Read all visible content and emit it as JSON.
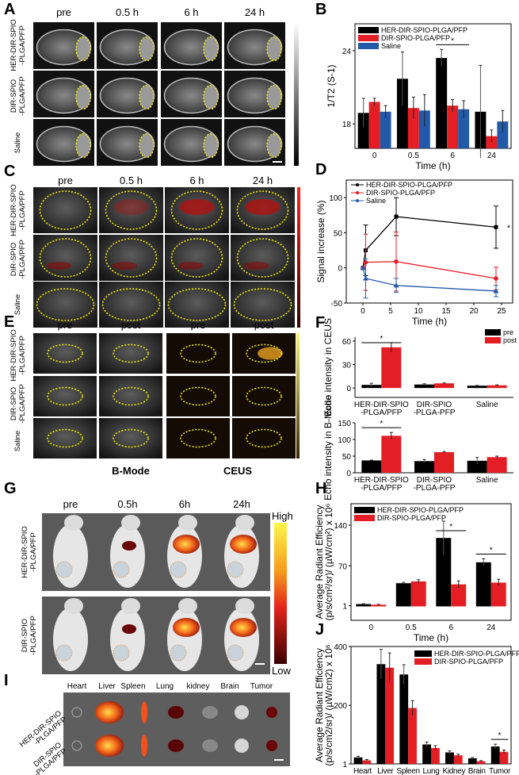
{
  "panel_letters": {
    "A": "A",
    "B": "B",
    "C": "C",
    "D": "D",
    "E": "E",
    "F": "F",
    "G": "G",
    "H": "H",
    "I": "I",
    "J": "J"
  },
  "panelA": {
    "col_headers": [
      "pre",
      "0.5 h",
      "6 h",
      "24 h"
    ],
    "row_labels": [
      [
        "HER-DIR-SPIO",
        "-PLGA/PFP"
      ],
      [
        "DIR-SPIO",
        "-PLGA/PFP"
      ],
      [
        "Saline",
        ""
      ]
    ]
  },
  "panelC": {
    "col_headers": [
      "pre",
      "0.5 h",
      "6 h",
      "24 h"
    ],
    "row_labels": [
      [
        "HER-DIR-SPIO",
        "-PLGA/PFP"
      ],
      [
        "DIR-SPIO",
        "-PLGA/PFP"
      ],
      [
        "Saline",
        ""
      ]
    ]
  },
  "panelE": {
    "col_headers": [
      "pre",
      "post",
      "pre",
      "post"
    ],
    "row_labels": [
      [
        "HER-DIR-SPIO",
        "-PLGA/PFP"
      ],
      [
        "DIR-SPIO",
        "-PLGA/PFP"
      ],
      [
        "Saline",
        ""
      ]
    ],
    "footers": [
      "B-Mode",
      "CEUS"
    ]
  },
  "panelG": {
    "col_headers": [
      "pre",
      "0.5h",
      "6h",
      "24h"
    ],
    "row_labels": [
      [
        "HER-DIR-SPIO",
        "-PLGA/PFP"
      ],
      [
        "DIR-SPIO",
        "-PLGA/PFP"
      ]
    ],
    "colorbar": {
      "high": "High",
      "low": "Low"
    }
  },
  "panelI": {
    "col_headers": [
      "Heart",
      "Liver",
      "Spleen",
      "Lung",
      "kidney",
      "Brain",
      "Tumor"
    ],
    "row_labels": [
      [
        "HER-DIR-SPIO",
        "-PLGA/PFP"
      ],
      [
        "DIR-SPIO",
        "-PLGA/PFP"
      ]
    ]
  },
  "colors": {
    "black": "#000000",
    "red": "#e41e25",
    "blue": "#2359a8",
    "ellipse": "#f2e600"
  },
  "chart_data": [
    {
      "id": "B",
      "type": "bar",
      "xlabel": "Time (h)",
      "ylabel": "1/T2 (S-1)",
      "categories": [
        "0",
        "0.5",
        "6",
        "24"
      ],
      "ylim": [
        16,
        26.2
      ],
      "yticks": [
        18,
        24
      ],
      "legend": "top-left",
      "series": [
        {
          "name": "HER-DIR-SPIO-PLGA/PFP",
          "color": "#000000",
          "values": [
            18.9,
            21.7,
            23.4,
            19.0
          ],
          "errors": [
            1.2,
            2.2,
            0.7,
            3.8
          ]
        },
        {
          "name": "DIR-SPIO-PLGA/PFP",
          "color": "#e41e25",
          "values": [
            19.8,
            19.3,
            19.5,
            17.0
          ],
          "errors": [
            0.3,
            0.9,
            0.5,
            0.5
          ]
        },
        {
          "name": "Saline",
          "color": "#2359a8",
          "values": [
            19.0,
            19.1,
            19.2,
            18.2
          ],
          "errors": [
            0.5,
            1.3,
            0.7,
            0.9
          ]
        }
      ],
      "significance": [
        {
          "category": "6",
          "label": "*"
        }
      ]
    },
    {
      "id": "D",
      "type": "line",
      "xlabel": "Time (h)",
      "ylabel": "Signal increase (%)",
      "xlim": [
        -3,
        27
      ],
      "ylim": [
        -50,
        125
      ],
      "xticks": [
        0,
        5,
        10,
        15,
        20,
        25
      ],
      "yticks": [
        -50,
        0,
        50,
        100
      ],
      "legend": "top-left",
      "series": [
        {
          "name": "HER-DIR-SPIO-PLGA/PFP",
          "color": "#000000",
          "marker": "square",
          "x": [
            0,
            0.5,
            6,
            24
          ],
          "y": [
            0,
            25,
            73,
            58
          ],
          "errors": [
            0,
            36,
            27,
            30
          ]
        },
        {
          "name": "DIR-SPIO-PLGA/PFP",
          "color": "#e41e25",
          "marker": "circle",
          "x": [
            0,
            0.5,
            6,
            24
          ],
          "y": [
            0,
            8,
            9,
            -15
          ],
          "errors": [
            0,
            40,
            42,
            16
          ]
        },
        {
          "name": "Saline",
          "color": "#2359a8",
          "marker": "triangle",
          "x": [
            0,
            0.5,
            6,
            24
          ],
          "y": [
            0,
            -15,
            -25,
            -33
          ],
          "errors": [
            0,
            28,
            10,
            8
          ]
        }
      ],
      "annotation": "*"
    },
    {
      "id": "F-CEUS",
      "type": "bar",
      "ylabel": "Echo intensity in CEUS",
      "categories": [
        "HER-DIR-SPIO\n-PLGA/PFP",
        "DIR-SPIO\n-PLGA-PFP",
        "Saline"
      ],
      "ylim": [
        -12,
        65
      ],
      "yticks": [
        0,
        30,
        60
      ],
      "legend": "top-right",
      "series": [
        {
          "name": "pre",
          "color": "#000000",
          "values": [
            4,
            4.5,
            3
          ],
          "errors": [
            2,
            1,
            0.3
          ]
        },
        {
          "name": "post",
          "color": "#e41e25",
          "values": [
            52,
            6,
            3.5
          ],
          "errors": [
            6,
            0.5,
            0.5
          ]
        }
      ],
      "significance": [
        {
          "category": "HER-DIR-SPIO\n-PLGA/PFP",
          "label": "*"
        }
      ]
    },
    {
      "id": "F-BMode",
      "type": "bar",
      "ylabel": "Echo intensity in B-Mode",
      "categories": [
        "HER-DIR-SPIO\n-PLGA/PFP",
        "DIR-SPIO\n-PLGA-PFP",
        "Saline"
      ],
      "ylim": [
        0,
        150
      ],
      "yticks": [
        0,
        50,
        100,
        150
      ],
      "series": [
        {
          "name": "pre",
          "color": "#000000",
          "values": [
            37,
            35,
            36
          ],
          "errors": [
            1,
            5,
            10
          ]
        },
        {
          "name": "post",
          "color": "#e41e25",
          "values": [
            111,
            62,
            47
          ],
          "errors": [
            10,
            2,
            3
          ]
        }
      ],
      "significance": [
        {
          "category": "HER-DIR-SPIO\n-PLGA/PFP",
          "label": "*"
        }
      ]
    },
    {
      "id": "H",
      "type": "bar",
      "xlabel": "Time (h)",
      "ylabel": "Average Radiant Efficiency\n(p/s/cm²/sr)/ (µW/cm²) x 10⁶",
      "categories": [
        "0",
        "0.5",
        "6",
        "24"
      ],
      "ylim": [
        -24,
        177
      ],
      "yticks": [
        1,
        70,
        140
      ],
      "legend": "top-left",
      "series": [
        {
          "name": "HER-DIR-SPIO-PLGA/PFP",
          "color": "#000000",
          "values": [
            4,
            40,
            118,
            76
          ],
          "errors": [
            0.5,
            1.5,
            29,
            6
          ]
        },
        {
          "name": "DIR-SPIO-PLGA/PFP",
          "color": "#e41e25",
          "values": [
            3,
            43,
            38,
            41
          ],
          "errors": [
            0.5,
            3,
            6,
            6
          ]
        }
      ],
      "significance": [
        {
          "category": "6",
          "label": "*"
        },
        {
          "category": "24",
          "label": "*"
        }
      ]
    },
    {
      "id": "J",
      "type": "bar",
      "ylabel": "Average Radiant Efficiency\n(p/s/cm2/sr)/ (µW/cm2) x 10⁶",
      "categories": [
        "Heart",
        "Liver",
        "Spleen",
        "Lung",
        "Kidney",
        "Brain",
        "Tumor"
      ],
      "ylim": [
        1,
        400
      ],
      "yticks": [
        1,
        200,
        400
      ],
      "legend": "top-right",
      "series": [
        {
          "name": "HER-DIR-SPIO-PLGA/PFP",
          "color": "#000000",
          "values": [
            23,
            340,
            305,
            67,
            40,
            20,
            60
          ],
          "errors": [
            4,
            50,
            33,
            8,
            5,
            3,
            8
          ]
        },
        {
          "name": "DIR-SPIO-PLGA/PFP",
          "color": "#e41e25",
          "values": [
            13,
            328,
            191,
            55,
            30,
            10,
            42
          ],
          "errors": [
            3,
            50,
            25,
            8,
            4,
            2,
            6
          ]
        }
      ],
      "significance": [
        {
          "category": "Tumor",
          "label": "*"
        }
      ]
    }
  ]
}
